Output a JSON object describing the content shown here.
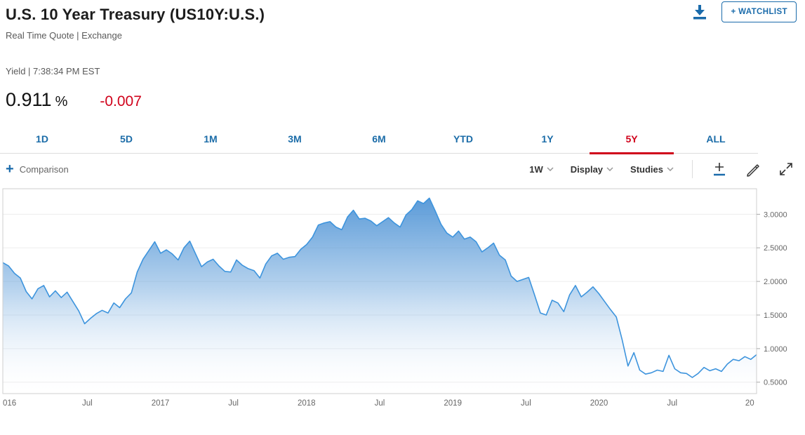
{
  "header": {
    "title": "U.S. 10 Year Treasury (US10Y:U.S.)",
    "subtitle": "Real Time Quote | Exchange",
    "quote_label": "Yield | 7:38:34 PM EST",
    "value": "0.911",
    "value_unit": "%",
    "change": "-0.007",
    "watchlist_label": "+ WATCHLIST"
  },
  "tabs": [
    {
      "label": "1D",
      "active": false
    },
    {
      "label": "5D",
      "active": false
    },
    {
      "label": "1M",
      "active": false
    },
    {
      "label": "3M",
      "active": false
    },
    {
      "label": "6M",
      "active": false
    },
    {
      "label": "YTD",
      "active": false
    },
    {
      "label": "1Y",
      "active": false
    },
    {
      "label": "5Y",
      "active": true
    },
    {
      "label": "ALL",
      "active": false
    }
  ],
  "toolbar": {
    "comparison_plus": "+",
    "comparison_label": "Comparison",
    "interval_label": "1W",
    "display_label": "Display",
    "studies_label": "Studies"
  },
  "colors": {
    "accent_blue": "#1a6bab",
    "tab_blue": "#1b6ca8",
    "active_red": "#d0021b",
    "change_red": "#d0021b",
    "chart_line": "#3d94dd",
    "chart_fill_top": "#4990d4",
    "axis_text": "#666666"
  },
  "chart_data": {
    "type": "area",
    "interval": "1W",
    "selected_range": "5Y",
    "series": [
      {
        "name": "US10Y Yield %",
        "values": [
          2.28,
          2.23,
          2.12,
          2.05,
          1.85,
          1.74,
          1.89,
          1.94,
          1.77,
          1.86,
          1.76,
          1.84,
          1.7,
          1.56,
          1.37,
          1.45,
          1.52,
          1.57,
          1.53,
          1.68,
          1.61,
          1.74,
          1.83,
          2.14,
          2.33,
          2.46,
          2.59,
          2.42,
          2.47,
          2.41,
          2.32,
          2.5,
          2.6,
          2.41,
          2.22,
          2.29,
          2.33,
          2.23,
          2.15,
          2.14,
          2.32,
          2.24,
          2.19,
          2.16,
          2.05,
          2.26,
          2.38,
          2.42,
          2.33,
          2.36,
          2.37,
          2.48,
          2.55,
          2.66,
          2.84,
          2.87,
          2.89,
          2.81,
          2.77,
          2.96,
          3.06,
          2.93,
          2.94,
          2.9,
          2.83,
          2.89,
          2.95,
          2.87,
          2.81,
          2.99,
          3.07,
          3.2,
          3.16,
          3.24,
          3.05,
          2.85,
          2.72,
          2.66,
          2.75,
          2.63,
          2.66,
          2.59,
          2.44,
          2.5,
          2.57,
          2.39,
          2.32,
          2.08,
          2.0,
          2.03,
          2.06,
          1.8,
          1.53,
          1.5,
          1.72,
          1.68,
          1.55,
          1.8,
          1.94,
          1.77,
          1.84,
          1.92,
          1.82,
          1.7,
          1.58,
          1.47,
          1.13,
          0.74,
          0.94,
          0.68,
          0.62,
          0.64,
          0.68,
          0.66,
          0.9,
          0.7,
          0.64,
          0.63,
          0.57,
          0.63,
          0.72,
          0.67,
          0.7,
          0.66,
          0.77,
          0.84,
          0.82,
          0.88,
          0.84,
          0.91
        ]
      }
    ],
    "y_range": [
      0.33,
      3.38
    ],
    "y_ticks": [
      {
        "value": 3.0,
        "label": "3.0000"
      },
      {
        "value": 2.5,
        "label": "2.5000"
      },
      {
        "value": 2.0,
        "label": "2.0000"
      },
      {
        "value": 1.5,
        "label": "1.5000"
      },
      {
        "value": 1.0,
        "label": "1.0000"
      },
      {
        "value": 0.5,
        "label": "0.5000"
      }
    ],
    "x_ticks": [
      {
        "label": "016",
        "pos": 0.0,
        "anchor": "start"
      },
      {
        "label": "Jul",
        "pos": 0.112
      },
      {
        "label": "2017",
        "pos": 0.209
      },
      {
        "label": "Jul",
        "pos": 0.306
      },
      {
        "label": "2018",
        "pos": 0.403
      },
      {
        "label": "Jul",
        "pos": 0.5
      },
      {
        "label": "2019",
        "pos": 0.597
      },
      {
        "label": "Jul",
        "pos": 0.694
      },
      {
        "label": "2020",
        "pos": 0.791
      },
      {
        "label": "Jul",
        "pos": 0.888
      },
      {
        "label": "20",
        "pos": 0.985,
        "anchor": "start"
      }
    ],
    "grid": true,
    "y_axis_side": "right"
  }
}
